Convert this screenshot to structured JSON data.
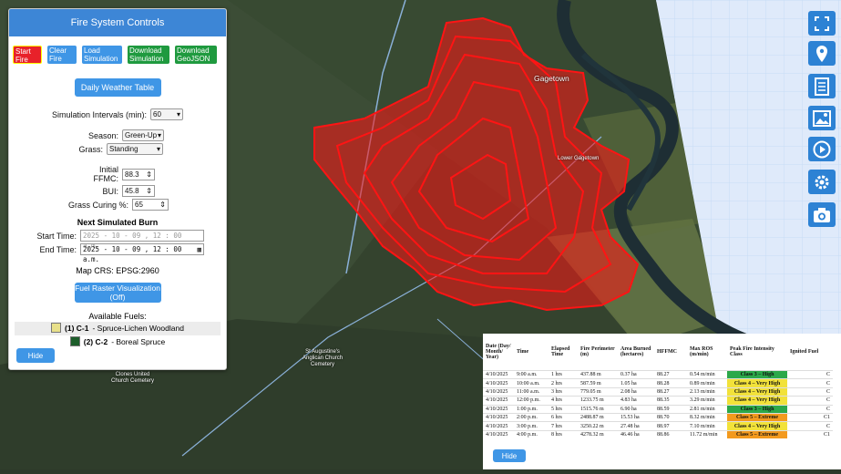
{
  "colors": {
    "fire": "#ff1414",
    "panel_header": "#3d86d6",
    "button_blue": "#3f96e6",
    "button_green": "#1f9a3f",
    "button_red": "#e8212a"
  },
  "map": {
    "labels": {
      "gagetown": "Gagetown",
      "lower_gagetown": "Lower Gagetown",
      "church_line1": "St Augustine's",
      "church_line2": "Anglican Church",
      "church_line3": "Cemetery",
      "cem_line1": "Clones United",
      "cem_line2": "Church Cemetery"
    }
  },
  "panel": {
    "title": "Fire System Controls",
    "start_fire": "Start Fire",
    "clear_fire": "Clear Fire",
    "load_sim": "Load Simulation",
    "download_sim": "Download Simulation",
    "download_geojson": "Download GeoJSON",
    "weather_btn": "Daily Weather Table",
    "interval_label": "Simulation Intervals (min):",
    "interval_value": "60",
    "season_label": "Season:",
    "season_value": "Green-Up",
    "grass_label": "Grass:",
    "grass_value": "Standing",
    "ffmc_label": "Initial FFMC:",
    "ffmc_value": "88.3",
    "bui_label": "BUI:",
    "bui_value": "45.8",
    "curing_label": "Grass Curing %:",
    "curing_value": "65",
    "next_burn": "Next Simulated Burn",
    "start_time_label": "Start Time:",
    "start_time_value": "2025 - 10 - 09 ,  12 : 00  a.m.",
    "end_time_label": "End Time:",
    "end_time_value": "2025 - 10 - 09 ,  12 : 00  a.m.",
    "crs": "Map CRS: EPSG:2960",
    "raster_btn": "Fuel Raster Visualization (Off)",
    "fuels_title": "Available Fuels:",
    "fuels": [
      {
        "code": "(1) C-1",
        "name": "- Spruce-Lichen Woodland",
        "color": "#e8e08a"
      },
      {
        "code": "(2) C-2",
        "name": "- Boreal Spruce",
        "color": "#1d5e2b"
      }
    ],
    "hide": "Hide"
  },
  "toolbar": [
    "fullscreen-icon",
    "map-pin-icon",
    "document-icon",
    "image-icon",
    "play-icon",
    "gear-icon",
    "camera-icon"
  ],
  "table": {
    "headers": [
      "Date (Day/ Month/ Year)",
      "Time",
      "Elapsed Time",
      "Fire Perimeter (m)",
      "Area Burned (hectares)",
      "HFFMC",
      "Max ROS (m/min)",
      "Peak Fire Intensity Class",
      "Ignited Fuel"
    ],
    "rows": [
      {
        "date": "4/10/2025",
        "time": "9:00 a.m.",
        "elapsed": "1 hrs",
        "perim": "437.88 m",
        "area": "0.37 ha",
        "hffmc": "88.27",
        "ros": "0.54 m/min",
        "cls": "Class 3 – High",
        "color": "#2ca84a",
        "fuel": "C"
      },
      {
        "date": "4/10/2025",
        "time": "10:00 a.m.",
        "elapsed": "2 hrs",
        "perim": "587.59 m",
        "area": "1.05 ha",
        "hffmc": "88.28",
        "ros": "0.89 m/min",
        "cls": "Class 4 – Very High",
        "color": "#f2e23a",
        "fuel": "C"
      },
      {
        "date": "4/10/2025",
        "time": "11:00 a.m.",
        "elapsed": "3 hrs",
        "perim": "779.05 m",
        "area": "2.08 ha",
        "hffmc": "88.27",
        "ros": "2.13 m/min",
        "cls": "Class 4 – Very High",
        "color": "#f2e23a",
        "fuel": "C"
      },
      {
        "date": "4/10/2025",
        "time": "12:00 p.m.",
        "elapsed": "4 hrs",
        "perim": "1233.75 m",
        "area": "4.83 ha",
        "hffmc": "88.35",
        "ros": "3.29 m/min",
        "cls": "Class 4 – Very High",
        "color": "#f2e23a",
        "fuel": "C"
      },
      {
        "date": "4/10/2025",
        "time": "1:00 p.m.",
        "elapsed": "5 hrs",
        "perim": "1515.76 m",
        "area": "6.90 ha",
        "hffmc": "88.59",
        "ros": "2.81 m/min",
        "cls": "Class 3 – High",
        "color": "#2ca84a",
        "fuel": "C"
      },
      {
        "date": "4/10/2025",
        "time": "2:00 p.m.",
        "elapsed": "6 hrs",
        "perim": "2488.87 m",
        "area": "15.53 ha",
        "hffmc": "88.70",
        "ros": "8.32 m/min",
        "cls": "Class 5 – Extreme",
        "color": "#f39a1e",
        "fuel": "C1"
      },
      {
        "date": "4/10/2025",
        "time": "3:00 p.m.",
        "elapsed": "7 hrs",
        "perim": "3250.22 m",
        "area": "27.48 ha",
        "hffmc": "88.97",
        "ros": "7.10 m/min",
        "cls": "Class 4 – Very High",
        "color": "#f2e23a",
        "fuel": "C"
      },
      {
        "date": "4/10/2025",
        "time": "4:00 p.m.",
        "elapsed": "8 hrs",
        "perim": "4278.32 m",
        "area": "46.46 ha",
        "hffmc": "88.86",
        "ros": "11.72 m/min",
        "cls": "Class 5 – Extreme",
        "color": "#f39a1e",
        "fuel": "C1"
      }
    ],
    "hide": "Hide"
  }
}
